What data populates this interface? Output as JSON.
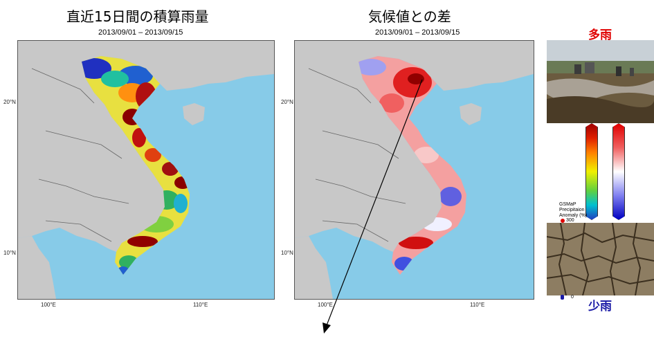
{
  "left_panel": {
    "title": "直近15日間の積算雨量",
    "date_range": "2013/09/01 – 2013/09/15",
    "ticks": {
      "lat20": "20°N",
      "lat10": "10°N",
      "lon100": "100°E",
      "lon110": "110°E"
    }
  },
  "right_panel": {
    "title": "気候値との差",
    "date_range": "2013/09/01 – 2013/09/15",
    "ticks": {
      "lat20": "20°N",
      "lat10": "10°N",
      "lon100": "100°E",
      "lon110": "110°E"
    }
  },
  "side": {
    "heavy_label": "多雨",
    "light_label": "少雨",
    "legend_lines": [
      "GSMaP",
      "Precipitaion",
      "Anomaly (%)"
    ],
    "legend_max": "300",
    "legend_min": "0"
  },
  "colors": {
    "ocean": "#87cbe8",
    "land": "#c8c8c8",
    "heavy": "#e00000",
    "light": "#1a1aa6"
  }
}
